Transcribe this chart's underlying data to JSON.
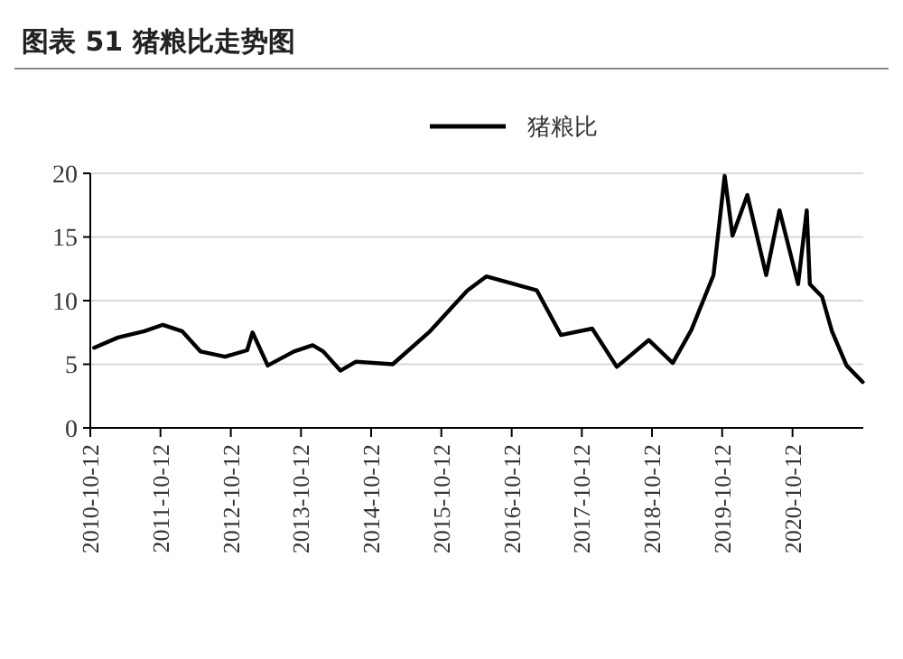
{
  "chart_data": {
    "type": "line",
    "title": "图表 51 猪粮比走势图",
    "x": [
      "2010-11-01",
      "2011-03-05",
      "2011-07-20",
      "2011-10-25",
      "2012-02-01",
      "2012-05-08",
      "2012-09-12",
      "2013-01-05",
      "2013-02-02",
      "2013-04-22",
      "2013-09-05",
      "2013-12-12",
      "2014-02-05",
      "2014-05-05",
      "2014-07-25",
      "2015-02-01",
      "2015-08-15",
      "2016-02-25",
      "2016-06-02",
      "2017-02-20",
      "2017-06-25",
      "2017-12-05",
      "2018-04-12",
      "2018-09-25",
      "2019-01-28",
      "2019-05-05",
      "2019-08-28",
      "2019-10-25",
      "2019-12-05",
      "2020-02-20",
      "2020-05-28",
      "2020-08-05",
      "2020-11-10",
      "2020-12-25",
      "2021-01-10",
      "2021-03-15",
      "2021-05-05",
      "2021-07-20",
      "2021-10-12"
    ],
    "series": [
      {
        "name": "猪粮比",
        "color": "#000000",
        "values": [
          6.3,
          7.1,
          7.6,
          8.1,
          7.6,
          6.0,
          5.6,
          6.1,
          7.5,
          4.9,
          6.0,
          6.5,
          6.0,
          4.5,
          5.2,
          5.0,
          7.6,
          10.8,
          11.9,
          10.8,
          7.3,
          7.8,
          4.8,
          6.9,
          5.1,
          7.7,
          12.0,
          19.8,
          15.1,
          18.3,
          12.0,
          17.1,
          11.3,
          17.1,
          11.3,
          10.3,
          7.6,
          4.9,
          3.6
        ]
      }
    ],
    "xlim": [
      "2010-10-12",
      "2021-10-15"
    ],
    "xticks": [
      "2010-10-12",
      "2011-10-12",
      "2012-10-12",
      "2013-10-12",
      "2014-10-12",
      "2015-10-12",
      "2016-10-12",
      "2017-10-12",
      "2018-10-12",
      "2019-10-12",
      "2020-10-12"
    ],
    "ylim": [
      0,
      20
    ],
    "yticks": [
      0,
      5,
      10,
      15,
      20
    ],
    "grid": "y",
    "legend": "top",
    "marker": "none",
    "line_style": "solid"
  }
}
